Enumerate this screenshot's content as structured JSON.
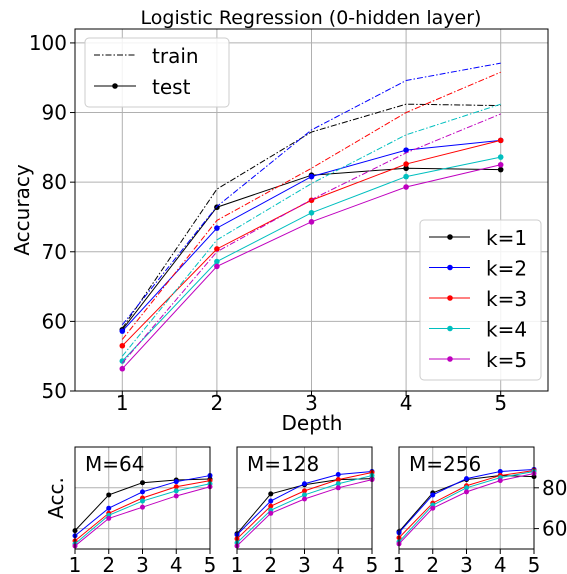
{
  "chart_data": [
    {
      "type": "line",
      "title": "Logistic Regression (0-hidden layer)",
      "xlabel": "Depth",
      "ylabel": "Accuracy",
      "x": [
        1,
        2,
        3,
        4,
        5
      ],
      "xlim": [
        0.5,
        5.5
      ],
      "ylim": [
        50,
        102
      ],
      "yticks": [
        50,
        60,
        70,
        80,
        90,
        100
      ],
      "grid": true,
      "style_legend": {
        "placement": "top-left",
        "entries": [
          {
            "label": "train",
            "style": "dashdot"
          },
          {
            "label": "test",
            "style": "solid-marker"
          }
        ]
      },
      "k_legend": {
        "placement": "lower-right",
        "entries": [
          "k=1",
          "k=2",
          "k=3",
          "k=4",
          "k=5"
        ]
      },
      "colors": [
        "#000000",
        "#0000ff",
        "#ff0000",
        "#00bfbf",
        "#bf00bf"
      ],
      "series": [
        {
          "name": "k=1",
          "train": [
            59.0,
            79.0,
            87.2,
            91.2,
            91.0
          ],
          "test": [
            58.8,
            76.4,
            81.0,
            82.0,
            81.8
          ]
        },
        {
          "name": "k=2",
          "train": [
            59.5,
            76.5,
            87.5,
            94.6,
            97.1
          ],
          "test": [
            58.6,
            73.4,
            80.8,
            84.6,
            86.0
          ]
        },
        {
          "name": "k=3",
          "train": [
            57.4,
            74.5,
            82.0,
            90.0,
            95.8
          ],
          "test": [
            56.5,
            70.4,
            77.4,
            82.6,
            86.0
          ]
        },
        {
          "name": "k=4",
          "train": [
            55.0,
            71.7,
            79.8,
            86.8,
            91.2
          ],
          "test": [
            54.3,
            68.6,
            75.6,
            80.8,
            83.6
          ]
        },
        {
          "name": "k=5",
          "train": [
            54.0,
            70.0,
            77.5,
            84.2,
            89.8
          ],
          "test": [
            53.2,
            67.9,
            74.3,
            79.3,
            82.5
          ]
        }
      ]
    },
    {
      "type": "line",
      "title": "M=64",
      "ylabel": "Acc.",
      "x": [
        1,
        2,
        3,
        4,
        5
      ],
      "ylim": [
        50,
        100
      ],
      "grid": true,
      "series": [
        {
          "name": "k=1",
          "values": [
            59.0,
            76.5,
            82.5,
            83.8,
            84.3
          ]
        },
        {
          "name": "k=2",
          "values": [
            56.5,
            70.0,
            78.0,
            83.0,
            86.0
          ]
        },
        {
          "name": "k=3",
          "values": [
            54.0,
            67.5,
            75.0,
            80.5,
            83.5
          ]
        },
        {
          "name": "k=4",
          "values": [
            52.5,
            66.5,
            73.5,
            78.5,
            82.0
          ]
        },
        {
          "name": "k=5",
          "values": [
            51.5,
            65.0,
            70.5,
            76.0,
            80.5
          ]
        }
      ]
    },
    {
      "type": "line",
      "title": "M=128",
      "x": [
        1,
        2,
        3,
        4,
        5
      ],
      "ylim": [
        50,
        100
      ],
      "grid": true,
      "series": [
        {
          "name": "k=1",
          "values": [
            57.5,
            77.0,
            81.5,
            84.0,
            84.5
          ]
        },
        {
          "name": "k=2",
          "values": [
            57.0,
            73.5,
            82.0,
            86.5,
            88.0
          ]
        },
        {
          "name": "k=3",
          "values": [
            55.0,
            71.0,
            78.5,
            84.0,
            87.5
          ]
        },
        {
          "name": "k=4",
          "values": [
            53.0,
            69.0,
            76.5,
            82.0,
            86.0
          ]
        },
        {
          "name": "k=5",
          "values": [
            51.5,
            67.5,
            74.5,
            80.0,
            84.0
          ]
        }
      ]
    },
    {
      "type": "line",
      "title": "M=256",
      "x": [
        1,
        2,
        3,
        4,
        5
      ],
      "ylim": [
        50,
        100
      ],
      "yticks": [
        60,
        80
      ],
      "grid": true,
      "series": [
        {
          "name": "k=1",
          "values": [
            58.5,
            77.5,
            84.0,
            86.0,
            85.5
          ]
        },
        {
          "name": "k=2",
          "values": [
            58.0,
            76.5,
            84.5,
            88.0,
            89.0
          ]
        },
        {
          "name": "k=3",
          "values": [
            55.5,
            72.5,
            81.0,
            86.0,
            88.5
          ]
        },
        {
          "name": "k=4",
          "values": [
            53.5,
            71.5,
            80.0,
            85.0,
            88.0
          ]
        },
        {
          "name": "k=5",
          "values": [
            52.5,
            70.0,
            78.0,
            83.5,
            87.0
          ]
        }
      ]
    }
  ]
}
